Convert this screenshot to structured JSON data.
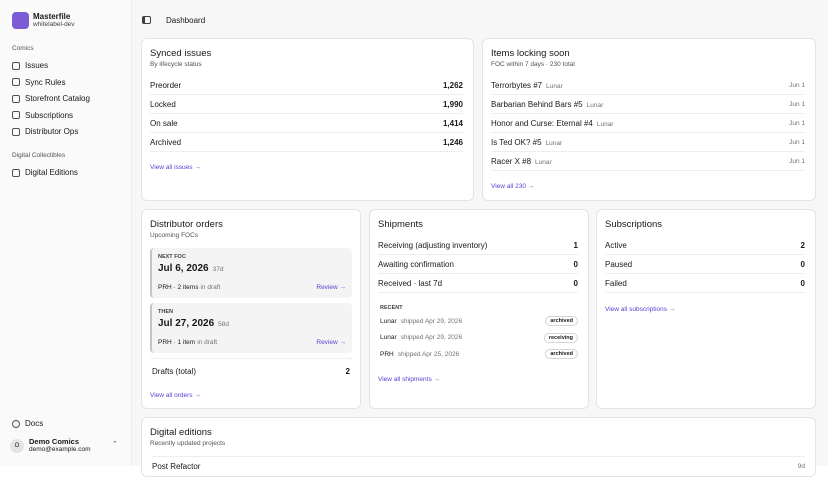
{
  "sidebar": {
    "brand": {
      "name": "Masterfile",
      "env": "whitelabel-dev"
    },
    "sections": [
      {
        "title": "Comics",
        "items": [
          "Issues",
          "Sync Rules",
          "Storefront Catalog",
          "Subscriptions",
          "Distributor Ops"
        ]
      },
      {
        "title": "Digital Collectibles",
        "items": [
          "Digital Editions"
        ]
      }
    ],
    "footer": {
      "docs": "Docs",
      "user": {
        "initial": "O",
        "name": "Demo Comics",
        "email": "demo@example.com"
      }
    }
  },
  "header": {
    "title": "Dashboard"
  },
  "synced_issues": {
    "title": "Synced issues",
    "subtitle": "By lifecycle status",
    "rows": [
      {
        "label": "Preorder",
        "value": "1,262"
      },
      {
        "label": "Locked",
        "value": "1,990"
      },
      {
        "label": "On sale",
        "value": "1,414"
      },
      {
        "label": "Archived",
        "value": "1,246"
      }
    ],
    "link": "View all issues →"
  },
  "locking": {
    "title": "Items locking soon",
    "subtitle": "FOC within 7 days · 230 total",
    "rows": [
      {
        "title": "Terrorbytes #7",
        "publisher": "Lunar",
        "date": "Jun 1"
      },
      {
        "title": "Barbarian Behind Bars #5",
        "publisher": "Lunar",
        "date": "Jun 1"
      },
      {
        "title": "Honor and Curse: Eternal #4",
        "publisher": "Lunar",
        "date": "Jun 1"
      },
      {
        "title": "Is Ted OK? #5",
        "publisher": "Lunar",
        "date": "Jun 1"
      },
      {
        "title": "Racer X #8",
        "publisher": "Lunar",
        "date": "Jun 1"
      }
    ],
    "link": "View all 230 →"
  },
  "distributor_orders": {
    "title": "Distributor orders",
    "subtitle": "Upcoming FOCs",
    "blocks": [
      {
        "kicker": "NEXT FOC",
        "date": "Jul 6, 2026",
        "days": "37d",
        "meta": "PRH · 2 items",
        "meta_suffix": "in draft",
        "action": "Review →"
      },
      {
        "kicker": "THEN",
        "date": "Jul 27, 2026",
        "days": "58d",
        "meta": "PRH · 1 item",
        "meta_suffix": "in draft",
        "action": "Review →"
      }
    ],
    "drafts": {
      "label": "Drafts (total)",
      "value": "2"
    },
    "link": "View all orders →"
  },
  "shipments": {
    "title": "Shipments",
    "rows": [
      {
        "label": "Receiving (adjusting inventory)",
        "value": "1"
      },
      {
        "label": "Awaiting confirmation",
        "value": "0"
      },
      {
        "label": "Received · last 7d",
        "value": "0"
      }
    ],
    "recent_label": "RECENT",
    "recent": [
      {
        "distributor": "Lunar",
        "detail": "shipped Apr 29, 2026",
        "status": "archived"
      },
      {
        "distributor": "Lunar",
        "detail": "shipped Apr 29, 2026",
        "status": "receiving"
      },
      {
        "distributor": "PRH",
        "detail": "shipped Apr 25, 2026",
        "status": "archived"
      }
    ],
    "link": "View all shipments →"
  },
  "subscriptions": {
    "title": "Subscriptions",
    "rows": [
      {
        "label": "Active",
        "value": "2"
      },
      {
        "label": "Paused",
        "value": "0"
      },
      {
        "label": "Failed",
        "value": "0"
      }
    ],
    "link": "View all subscriptions →"
  },
  "digital_editions": {
    "title": "Digital editions",
    "subtitle": "Recently updated projects",
    "rows": [
      {
        "title": "Post Refactor",
        "age": "9d"
      }
    ]
  }
}
